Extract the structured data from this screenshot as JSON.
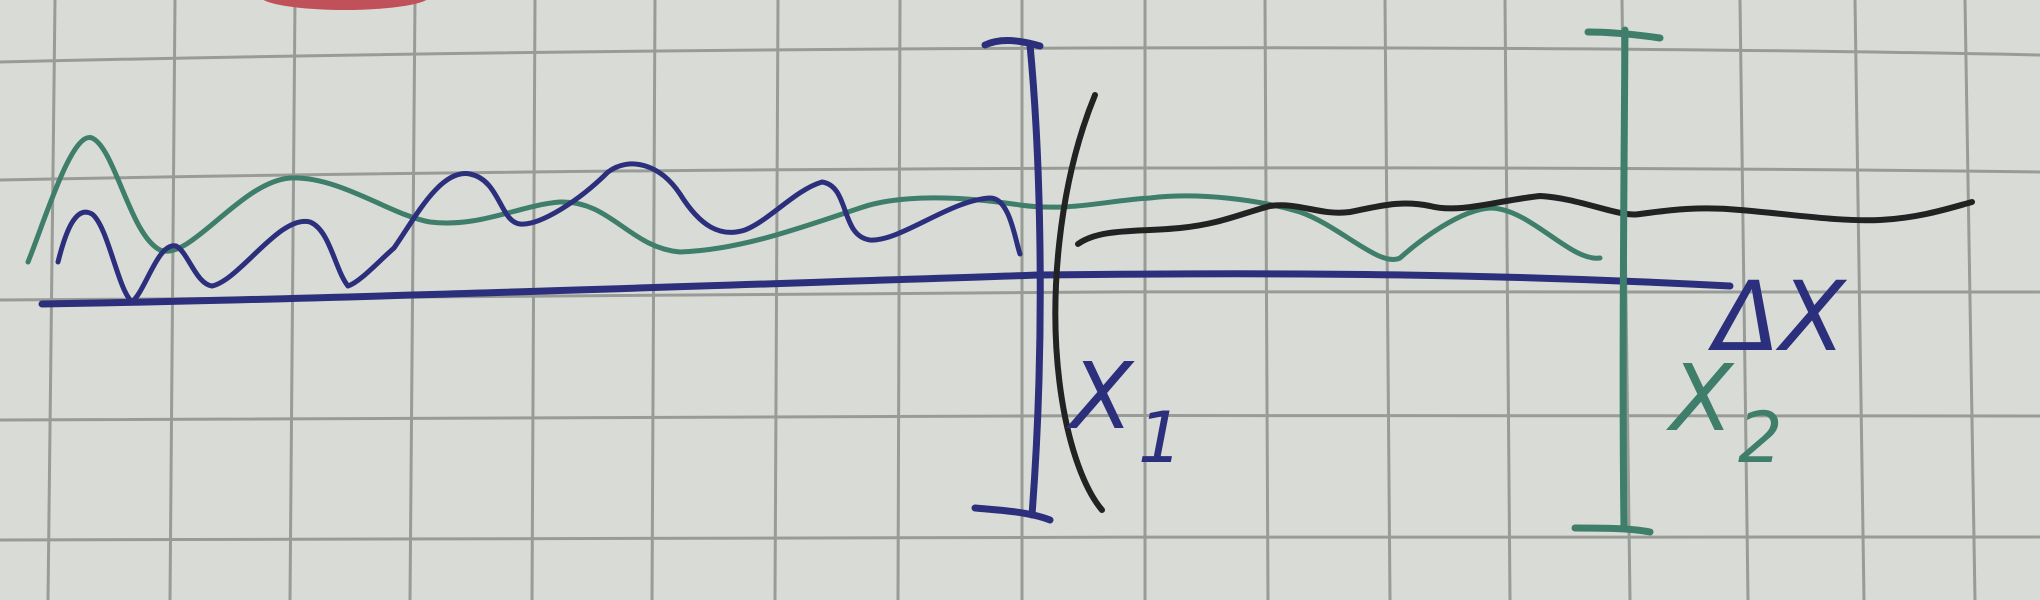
{
  "diagram": {
    "labels": {
      "x1": "X",
      "x1_sub": "1",
      "x2": "X",
      "x2_sub": "2",
      "delta_x": "ΔX"
    },
    "colors": {
      "paper": "#d9dcd6",
      "grid": "#8e918c",
      "blue_ink": "#2c2f7c",
      "green_ink": "#3f7e6a",
      "black_ink": "#222222",
      "red_mark": "#c0505a"
    }
  }
}
